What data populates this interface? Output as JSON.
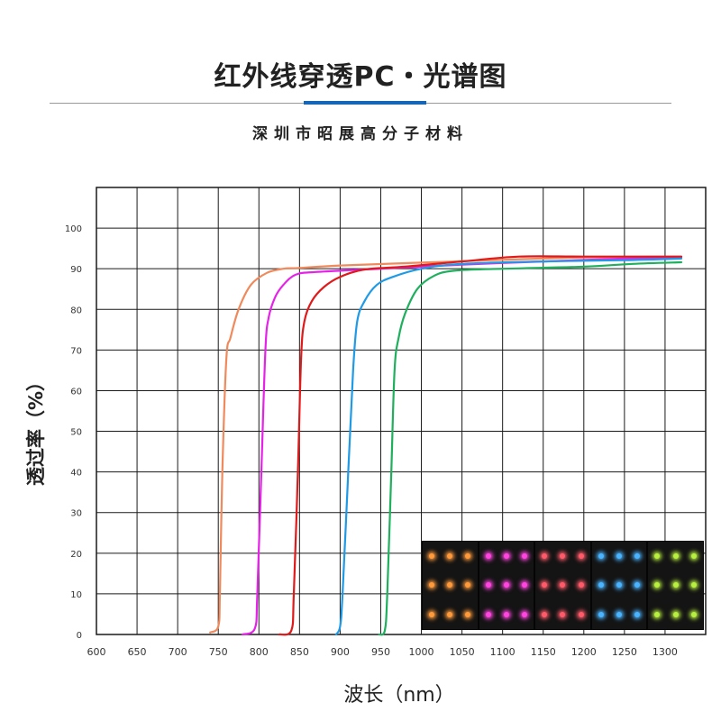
{
  "header": {
    "title": "红外线穿透PC・光谱图",
    "subtitle": "深圳市昭展高分子材料"
  },
  "colors": {
    "grid": "#1a1a1a",
    "accent": "#1565b8",
    "text": "#222222"
  },
  "chart_data": {
    "type": "line",
    "title": "红外线穿透PC・光谱图",
    "xlabel": "波长（nm）",
    "ylabel": "透过率（%）",
    "xlim": [
      600,
      1350
    ],
    "ylim": [
      0,
      110
    ],
    "x_ticks": [
      600,
      650,
      700,
      750,
      800,
      850,
      900,
      950,
      1000,
      1050,
      1100,
      1150,
      1200,
      1250,
      1300
    ],
    "y_ticks": [
      0,
      10,
      20,
      30,
      40,
      50,
      60,
      70,
      80,
      90,
      100
    ],
    "grid": true,
    "legend": "none",
    "series": [
      {
        "color": "#f08a5c",
        "points": [
          [
            740,
            0.5
          ],
          [
            750,
            2
          ],
          [
            752,
            10
          ],
          [
            755,
            40
          ],
          [
            760,
            68
          ],
          [
            765,
            73
          ],
          [
            775,
            80
          ],
          [
            790,
            86
          ],
          [
            810,
            89
          ],
          [
            830,
            90
          ],
          [
            850,
            90.2
          ],
          [
            900,
            90.8
          ],
          [
            1000,
            91.5
          ],
          [
            1100,
            92.2
          ],
          [
            1200,
            92.8
          ],
          [
            1320,
            93
          ]
        ]
      },
      {
        "color": "#e622e8",
        "points": [
          [
            780,
            0
          ],
          [
            795,
            1.5
          ],
          [
            798,
            10
          ],
          [
            803,
            40
          ],
          [
            808,
            70
          ],
          [
            812,
            78
          ],
          [
            820,
            83
          ],
          [
            830,
            86
          ],
          [
            845,
            88.5
          ],
          [
            870,
            89.2
          ],
          [
            950,
            90
          ],
          [
            1050,
            91
          ],
          [
            1150,
            91.8
          ],
          [
            1250,
            92.5
          ],
          [
            1320,
            92.8
          ]
        ]
      },
      {
        "color": "#e01a1a",
        "points": [
          [
            825,
            0
          ],
          [
            840,
            1
          ],
          [
            843,
            10
          ],
          [
            848,
            40
          ],
          [
            852,
            68
          ],
          [
            856,
            77
          ],
          [
            865,
            82
          ],
          [
            880,
            85.5
          ],
          [
            900,
            88
          ],
          [
            930,
            89.8
          ],
          [
            980,
            90.5
          ],
          [
            1050,
            91.8
          ],
          [
            1120,
            93
          ],
          [
            1200,
            93
          ],
          [
            1320,
            93
          ]
        ]
      },
      {
        "color": "#1e9ae6",
        "points": [
          [
            895,
            0
          ],
          [
            900,
            2
          ],
          [
            903,
            10
          ],
          [
            910,
            40
          ],
          [
            916,
            65
          ],
          [
            921,
            77
          ],
          [
            930,
            82
          ],
          [
            945,
            86
          ],
          [
            965,
            88
          ],
          [
            1000,
            90
          ],
          [
            1050,
            91.2
          ],
          [
            1150,
            91.8
          ],
          [
            1250,
            92.1
          ],
          [
            1320,
            92.5
          ]
        ]
      },
      {
        "color": "#1fb05e",
        "points": [
          [
            948,
            0
          ],
          [
            955,
            1
          ],
          [
            958,
            10
          ],
          [
            963,
            40
          ],
          [
            967,
            65
          ],
          [
            972,
            73
          ],
          [
            980,
            79
          ],
          [
            995,
            85
          ],
          [
            1015,
            88.2
          ],
          [
            1040,
            89.5
          ],
          [
            1100,
            90
          ],
          [
            1200,
            90.5
          ],
          [
            1260,
            91.2
          ],
          [
            1320,
            91.6
          ]
        ]
      }
    ]
  },
  "photo": {
    "panels": [
      {
        "name": "orange",
        "color": "#ff9a3c"
      },
      {
        "name": "magenta",
        "color": "#ff44e0"
      },
      {
        "name": "red",
        "color": "#ff5a6a"
      },
      {
        "name": "blue",
        "color": "#4ab4ff"
      },
      {
        "name": "green",
        "color": "#b8f040"
      }
    ]
  }
}
